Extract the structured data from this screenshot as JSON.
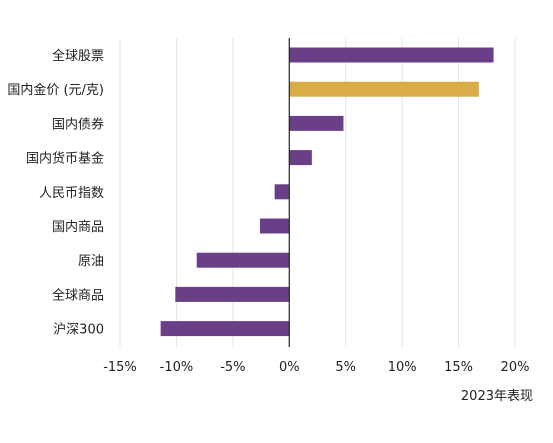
{
  "chart_data": {
    "type": "bar",
    "orientation": "horizontal",
    "categories": [
      "全球股票",
      "国内金价 (元/克)",
      "国内债券",
      "国内货币基金",
      "人民币指数",
      "国内商品",
      "原油",
      "全球商品",
      "沪深300"
    ],
    "values": [
      18.1,
      16.8,
      4.8,
      2.0,
      -1.3,
      -2.6,
      -8.2,
      -10.1,
      -11.4
    ],
    "colors": [
      "#6b3f87",
      "#d9ac45",
      "#6b3f87",
      "#6b3f87",
      "#6b3f87",
      "#6b3f87",
      "#6b3f87",
      "#6b3f87",
      "#6b3f87"
    ],
    "xlim": [
      -15,
      20
    ],
    "xticks": [
      -15,
      -10,
      -5,
      0,
      5,
      10,
      15,
      20
    ],
    "xtick_labels": [
      "-15%",
      "-10%",
      "-5%",
      "0%",
      "5%",
      "10%",
      "15%",
      "20%"
    ],
    "xlabel": "2023年表现",
    "title": "",
    "grid": true
  }
}
